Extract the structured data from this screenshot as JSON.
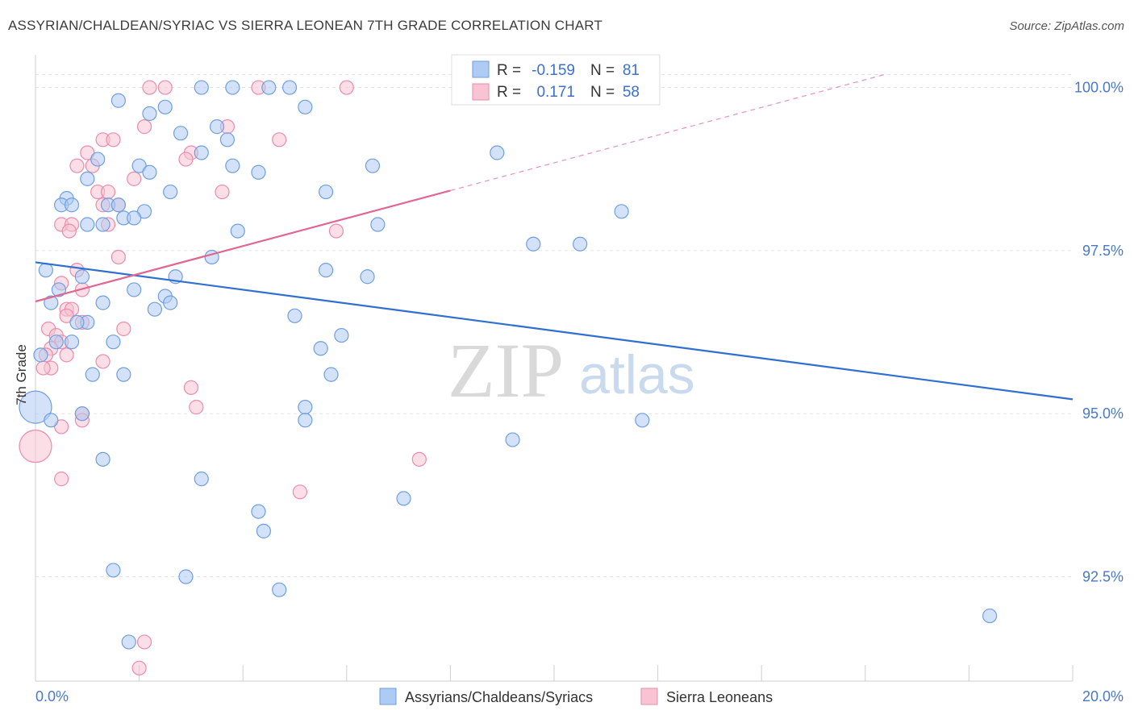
{
  "title": "ASSYRIAN/CHALDEAN/SYRIAC VS SIERRA LEONEAN 7TH GRADE CORRELATION CHART",
  "source": "Source: ZipAtlas.com",
  "watermark": {
    "zip": "ZIP",
    "atlas": "atlas"
  },
  "colors": {
    "blue_fill": "#aecbf3",
    "blue_stroke": "#6f9fdf",
    "blue_line": "#2f6fd0",
    "pink_fill": "#f8c3d2",
    "pink_stroke": "#e98dab",
    "pink_line": "#e0678f",
    "grid": "#e3e3e3",
    "tick_text": "#4a78c8"
  },
  "stats": {
    "blue": {
      "r_label": "R =",
      "r_value": "-0.159",
      "n_label": "N =",
      "n_value": "81"
    },
    "pink": {
      "r_label": "R =",
      "r_value": "0.171",
      "n_label": "N =",
      "n_value": "58"
    }
  },
  "chart_data": {
    "type": "scatter",
    "title": "ASSYRIAN/CHALDEAN/SYRIAC VS SIERRA LEONEAN 7TH GRADE CORRELATION CHART",
    "xlabel": "",
    "ylabel": "7th Grade",
    "xlim": [
      0,
      20
    ],
    "ylim": [
      90.9,
      100.6
    ],
    "x_tick_labels": [
      "0.0%",
      "20.0%"
    ],
    "y_ticks": [
      92.5,
      95.0,
      97.5,
      100.0
    ],
    "y_tick_labels": [
      "92.5%",
      "95.0%",
      "97.5%",
      "100.0%"
    ],
    "grid": true,
    "legend_position": "bottom",
    "series": [
      {
        "name": "Assyrians/Chaldeans/Syriacs",
        "color": "blue",
        "trend": {
          "x": [
            0,
            20
          ],
          "y": [
            97.32,
            95.22
          ],
          "dashed_extension": false
        },
        "points": [
          {
            "x": 1.6,
            "y": 99.8
          },
          {
            "x": 3.8,
            "y": 100.0
          },
          {
            "x": 3.2,
            "y": 100.0
          },
          {
            "x": 4.5,
            "y": 100.0
          },
          {
            "x": 4.9,
            "y": 100.0
          },
          {
            "x": 2.5,
            "y": 99.7
          },
          {
            "x": 2.2,
            "y": 99.6
          },
          {
            "x": 5.2,
            "y": 99.7
          },
          {
            "x": 3.5,
            "y": 99.4
          },
          {
            "x": 2.8,
            "y": 99.3
          },
          {
            "x": 3.7,
            "y": 99.2
          },
          {
            "x": 3.2,
            "y": 99.0
          },
          {
            "x": 1.2,
            "y": 98.9
          },
          {
            "x": 2.0,
            "y": 98.8
          },
          {
            "x": 3.8,
            "y": 98.8
          },
          {
            "x": 2.2,
            "y": 98.7
          },
          {
            "x": 4.3,
            "y": 98.7
          },
          {
            "x": 1.0,
            "y": 98.6
          },
          {
            "x": 2.6,
            "y": 98.4
          },
          {
            "x": 5.6,
            "y": 98.4
          },
          {
            "x": 0.6,
            "y": 98.3
          },
          {
            "x": 8.9,
            "y": 99.0
          },
          {
            "x": 0.5,
            "y": 98.2
          },
          {
            "x": 0.7,
            "y": 98.2
          },
          {
            "x": 1.4,
            "y": 98.2
          },
          {
            "x": 1.6,
            "y": 98.2
          },
          {
            "x": 1.7,
            "y": 98.0
          },
          {
            "x": 2.1,
            "y": 98.1
          },
          {
            "x": 1.9,
            "y": 98.0
          },
          {
            "x": 6.5,
            "y": 98.8
          },
          {
            "x": 1.3,
            "y": 97.9
          },
          {
            "x": 1.0,
            "y": 97.9
          },
          {
            "x": 6.6,
            "y": 97.9
          },
          {
            "x": 3.9,
            "y": 97.8
          },
          {
            "x": 11.3,
            "y": 98.1
          },
          {
            "x": 9.6,
            "y": 97.6
          },
          {
            "x": 10.5,
            "y": 97.6
          },
          {
            "x": 3.4,
            "y": 97.4
          },
          {
            "x": 0.2,
            "y": 97.2
          },
          {
            "x": 5.6,
            "y": 97.2
          },
          {
            "x": 6.4,
            "y": 97.1
          },
          {
            "x": 2.7,
            "y": 97.1
          },
          {
            "x": 0.9,
            "y": 97.1
          },
          {
            "x": 0.45,
            "y": 96.9
          },
          {
            "x": 1.9,
            "y": 96.9
          },
          {
            "x": 2.5,
            "y": 96.8
          },
          {
            "x": 0.3,
            "y": 96.7
          },
          {
            "x": 2.6,
            "y": 96.7
          },
          {
            "x": 1.3,
            "y": 96.7
          },
          {
            "x": 2.3,
            "y": 96.6
          },
          {
            "x": 5.0,
            "y": 96.5
          },
          {
            "x": 1.0,
            "y": 96.4
          },
          {
            "x": 0.8,
            "y": 96.4
          },
          {
            "x": 1.5,
            "y": 96.1
          },
          {
            "x": 0.7,
            "y": 96.1
          },
          {
            "x": 0.4,
            "y": 96.1
          },
          {
            "x": 5.9,
            "y": 96.2
          },
          {
            "x": 5.5,
            "y": 96.0
          },
          {
            "x": 0.1,
            "y": 95.9
          },
          {
            "x": 1.7,
            "y": 95.6
          },
          {
            "x": 1.1,
            "y": 95.6
          },
          {
            "x": 5.7,
            "y": 95.6
          },
          {
            "x": 0.0,
            "y": 95.1,
            "size": "large"
          },
          {
            "x": 5.2,
            "y": 95.1
          },
          {
            "x": 0.9,
            "y": 95.0
          },
          {
            "x": 0.3,
            "y": 94.9
          },
          {
            "x": 5.2,
            "y": 94.9
          },
          {
            "x": 11.7,
            "y": 94.9
          },
          {
            "x": 9.2,
            "y": 94.6
          },
          {
            "x": 1.3,
            "y": 94.3
          },
          {
            "x": 3.2,
            "y": 94.0
          },
          {
            "x": 7.1,
            "y": 93.7
          },
          {
            "x": 4.3,
            "y": 93.5
          },
          {
            "x": 4.4,
            "y": 93.2
          },
          {
            "x": 1.5,
            "y": 92.6
          },
          {
            "x": 2.9,
            "y": 92.5
          },
          {
            "x": 4.7,
            "y": 92.3
          },
          {
            "x": 18.4,
            "y": 91.9
          },
          {
            "x": 1.8,
            "y": 91.5
          }
        ]
      },
      {
        "name": "Sierra Leoneans",
        "color": "pink",
        "trend": {
          "x": [
            0,
            8.0
          ],
          "y": [
            96.72,
            98.42
          ],
          "extension_x": [
            8.0,
            20.0
          ],
          "dashed_extension": true
        },
        "points": [
          {
            "x": 2.2,
            "y": 100.0
          },
          {
            "x": 2.5,
            "y": 100.0
          },
          {
            "x": 4.3,
            "y": 100.0
          },
          {
            "x": 6.0,
            "y": 100.0
          },
          {
            "x": 2.1,
            "y": 99.4
          },
          {
            "x": 3.7,
            "y": 99.4
          },
          {
            "x": 1.3,
            "y": 99.2
          },
          {
            "x": 1.5,
            "y": 99.2
          },
          {
            "x": 4.7,
            "y": 99.2
          },
          {
            "x": 3.0,
            "y": 99.0
          },
          {
            "x": 1.0,
            "y": 99.0
          },
          {
            "x": 2.9,
            "y": 98.9
          },
          {
            "x": 0.8,
            "y": 98.8
          },
          {
            "x": 1.1,
            "y": 98.8
          },
          {
            "x": 1.9,
            "y": 98.6
          },
          {
            "x": 3.6,
            "y": 98.4
          },
          {
            "x": 1.2,
            "y": 98.4
          },
          {
            "x": 1.4,
            "y": 98.4
          },
          {
            "x": 1.3,
            "y": 98.2
          },
          {
            "x": 1.6,
            "y": 98.2
          },
          {
            "x": 0.5,
            "y": 97.9
          },
          {
            "x": 0.7,
            "y": 97.9
          },
          {
            "x": 1.4,
            "y": 97.9
          },
          {
            "x": 5.8,
            "y": 97.8
          },
          {
            "x": 0.65,
            "y": 97.8
          },
          {
            "x": 1.6,
            "y": 97.4
          },
          {
            "x": 0.8,
            "y": 97.2
          },
          {
            "x": 0.5,
            "y": 97.0
          },
          {
            "x": 0.9,
            "y": 96.9
          },
          {
            "x": 0.6,
            "y": 96.6
          },
          {
            "x": 0.7,
            "y": 96.6
          },
          {
            "x": 0.6,
            "y": 96.5
          },
          {
            "x": 0.9,
            "y": 96.4
          },
          {
            "x": 1.7,
            "y": 96.3
          },
          {
            "x": 0.25,
            "y": 96.3
          },
          {
            "x": 0.4,
            "y": 96.2
          },
          {
            "x": 0.5,
            "y": 96.1
          },
          {
            "x": 0.3,
            "y": 96.0
          },
          {
            "x": 0.6,
            "y": 95.9
          },
          {
            "x": 0.2,
            "y": 95.9
          },
          {
            "x": 0.3,
            "y": 95.7
          },
          {
            "x": 0.15,
            "y": 95.7
          },
          {
            "x": 1.3,
            "y": 95.8
          },
          {
            "x": 3.0,
            "y": 95.4
          },
          {
            "x": 3.1,
            "y": 95.1
          },
          {
            "x": 0.9,
            "y": 95.0
          },
          {
            "x": 0.9,
            "y": 94.9
          },
          {
            "x": 0.5,
            "y": 94.8
          },
          {
            "x": 0.0,
            "y": 94.5,
            "size": "large"
          },
          {
            "x": 7.4,
            "y": 94.3
          },
          {
            "x": 0.5,
            "y": 94.0
          },
          {
            "x": 5.1,
            "y": 93.8
          },
          {
            "x": 2.1,
            "y": 91.5
          },
          {
            "x": 2.0,
            "y": 91.1
          }
        ]
      }
    ]
  }
}
